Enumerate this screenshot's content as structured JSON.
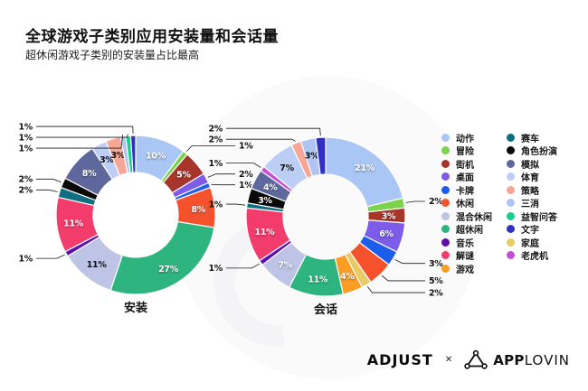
{
  "header": {
    "title": "全球游戏子类别应用安装量和会话量",
    "subtitle": "超休闲游戏子类别的安装量占比最高"
  },
  "palette": {
    "动作": "#a9c6f4",
    "冒险": "#7bd34d",
    "街机": "#a8352a",
    "桌面": "#7c5ce8",
    "卡牌": "#1d5dec",
    "休闲": "#f5512d",
    "混合休闲": "#bdc4e5",
    "超休闲": "#2db47f",
    "音乐": "#5c0eae",
    "解谜": "#f23c6c",
    "游戏": "#fb9d24",
    "赛车": "#0e6f83",
    "角色扮演": "#0a0a0a",
    "模拟": "#5e689c",
    "体育": "#bccdf6",
    "策略": "#f7a696",
    "三消": "#b0c4f4",
    "益智问答": "#17ce8c",
    "文字": "#3230c3",
    "家庭": "#e8ca66",
    "老虎机": "#c94ed6"
  },
  "chart_data": [
    {
      "type": "pie",
      "title": "安装",
      "unit": "%",
      "donut": true,
      "start_angle_deg": 0,
      "direction": "clockwise",
      "slices": [
        {
          "name": "动作",
          "value": 10,
          "label": "10%",
          "placement": "inside",
          "label_color": "#ffffff"
        },
        {
          "name": "冒险",
          "value": 1,
          "label": "1%",
          "placement": "callout"
        },
        {
          "name": "街机",
          "value": 5,
          "label": "5%",
          "placement": "inside",
          "label_color": "#ffffff"
        },
        {
          "name": "桌面",
          "value": 2,
          "label": "2%",
          "placement": "callout"
        },
        {
          "name": "卡牌",
          "value": 1,
          "label": "1%",
          "placement": "callout"
        },
        {
          "name": "休闲",
          "value": 8,
          "label": "8%",
          "placement": "inside",
          "label_color": "#ffffff"
        },
        {
          "name": "超休闲",
          "value": 27,
          "label": "27%",
          "placement": "inside",
          "label_color": "#ffffff"
        },
        {
          "name": "混合休闲",
          "value": 11,
          "label": "11%",
          "placement": "inside",
          "label_color": "#111111"
        },
        {
          "name": "音乐",
          "value": 1,
          "label": "1%",
          "placement": "callout"
        },
        {
          "name": "解谜",
          "value": 11,
          "label": "11%",
          "placement": "inside",
          "label_color": "#ffffff"
        },
        {
          "name": "赛车",
          "value": 2,
          "label": "2%",
          "placement": "callout"
        },
        {
          "name": "角色扮演",
          "value": 2,
          "label": "2%",
          "placement": "callout"
        },
        {
          "name": "模拟",
          "value": 8,
          "label": "8%",
          "placement": "inside",
          "label_color": "#ffffff"
        },
        {
          "name": "体育",
          "value": 3,
          "label": "3%",
          "placement": "inside",
          "label_color": "#111111"
        },
        {
          "name": "策略",
          "value": 3,
          "label": "3%",
          "placement": "inside",
          "label_color": "#111111"
        },
        {
          "name": "三消",
          "value": 1,
          "label": "1%",
          "placement": "callout"
        },
        {
          "name": "益智问答",
          "value": 1,
          "label": "1%",
          "placement": "callout"
        },
        {
          "name": "文字",
          "value": 1,
          "label": "1%",
          "placement": "callout"
        }
      ]
    },
    {
      "type": "pie",
      "title": "会话",
      "unit": "%",
      "donut": true,
      "start_angle_deg": 0,
      "direction": "clockwise",
      "slices": [
        {
          "name": "动作",
          "value": 21,
          "label": "21%",
          "placement": "inside",
          "label_color": "#ffffff"
        },
        {
          "name": "冒险",
          "value": 2,
          "label": "2%",
          "placement": "callout"
        },
        {
          "name": "街机",
          "value": 3,
          "label": "3%",
          "placement": "inside",
          "label_color": "#ffffff"
        },
        {
          "name": "桌面",
          "value": 6,
          "label": "6%",
          "placement": "inside",
          "label_color": "#ffffff"
        },
        {
          "name": "卡牌",
          "value": 3,
          "label": "3%",
          "placement": "callout"
        },
        {
          "name": "休闲",
          "value": 5,
          "label": "5%",
          "placement": "callout"
        },
        {
          "name": "家庭",
          "value": 2,
          "label": "2%",
          "placement": "callout"
        },
        {
          "name": "游戏",
          "value": 4,
          "label": "4%",
          "placement": "inside",
          "label_color": "#ffffff"
        },
        {
          "name": "超休闲",
          "value": 11,
          "label": "11%",
          "placement": "inside",
          "label_color": "#ffffff"
        },
        {
          "name": "混合休闲",
          "value": 7,
          "label": "7%",
          "placement": "inside",
          "label_color": "#ffffff"
        },
        {
          "name": "音乐",
          "value": 1,
          "label": "1%",
          "placement": "callout"
        },
        {
          "name": "解谜",
          "value": 11,
          "label": "11%",
          "placement": "inside",
          "label_color": "#ffffff"
        },
        {
          "name": "赛车",
          "value": 1,
          "label": "1%",
          "placement": "callout"
        },
        {
          "name": "角色扮演",
          "value": 3,
          "label": "3%",
          "placement": "inside",
          "label_color": "#ffffff"
        },
        {
          "name": "模拟",
          "value": 4,
          "label": "4%",
          "placement": "inside",
          "label_color": "#ffffff"
        },
        {
          "name": "老虎机",
          "value": 1,
          "label": "1%",
          "placement": "callout"
        },
        {
          "name": "体育",
          "value": 7,
          "label": "7%",
          "placement": "inside",
          "label_color": "#111111"
        },
        {
          "name": "策略",
          "value": 2,
          "label": "2%",
          "placement": "callout"
        },
        {
          "name": "三消",
          "value": 3,
          "label": "3%",
          "placement": "inside",
          "label_color": "#111111"
        },
        {
          "name": "文字",
          "value": 2,
          "label": "2%",
          "placement": "callout"
        }
      ]
    }
  ],
  "legend": {
    "columns": [
      [
        "动作",
        "冒险",
        "街机",
        "桌面",
        "卡牌",
        "休闲",
        "混合休闲",
        "超休闲",
        "音乐",
        "解谜",
        "游戏"
      ],
      [
        "赛车",
        "角色扮演",
        "模拟",
        "体育",
        "策略",
        "三消",
        "益智问答",
        "文字",
        "家庭",
        "老虎机"
      ]
    ]
  },
  "footer": {
    "adjust_label": "ADJUST",
    "separator": "✕",
    "applovin_label_bold": "APP",
    "applovin_label_light": "LOVIN"
  },
  "decor": {
    "watermark_color": "#fafafb"
  }
}
